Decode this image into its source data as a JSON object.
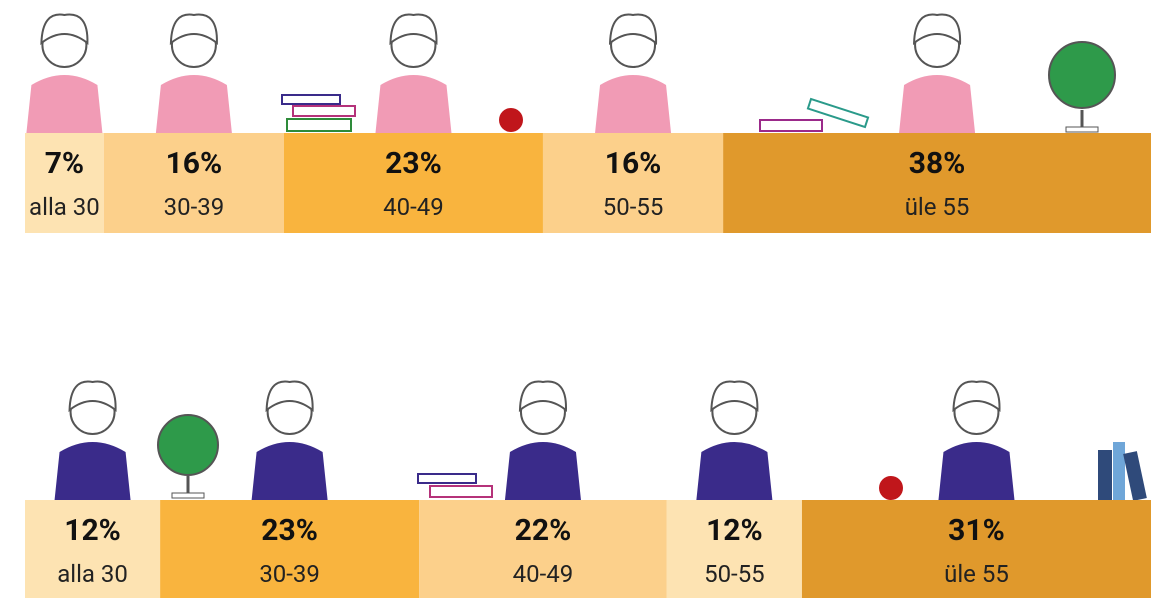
{
  "chart_data": [
    {
      "type": "bar",
      "orientation": "horizontal",
      "stacked": true,
      "categories": [
        "alla 30",
        "30-39",
        "40-49",
        "50-55",
        "üle 55"
      ],
      "values": [
        7,
        16,
        23,
        16,
        38
      ],
      "value_labels": [
        "7%",
        "16%",
        "23%",
        "16%",
        "38%"
      ],
      "colors": [
        "#fde3b2",
        "#fcd08b",
        "#f9b43e",
        "#fcd08b",
        "#e0992c"
      ],
      "xlim": [
        0,
        100
      ]
    },
    {
      "type": "bar",
      "orientation": "horizontal",
      "stacked": true,
      "categories": [
        "alla 30",
        "30-39",
        "40-49",
        "50-55",
        "üle 55"
      ],
      "values": [
        12,
        23,
        22,
        12,
        31
      ],
      "value_labels": [
        "12%",
        "23%",
        "22%",
        "12%",
        "31%"
      ],
      "colors": [
        "#fde3b2",
        "#f9b43e",
        "#fcd08b",
        "#fde3b2",
        "#e0992c"
      ],
      "xlim": [
        0,
        100
      ]
    }
  ]
}
